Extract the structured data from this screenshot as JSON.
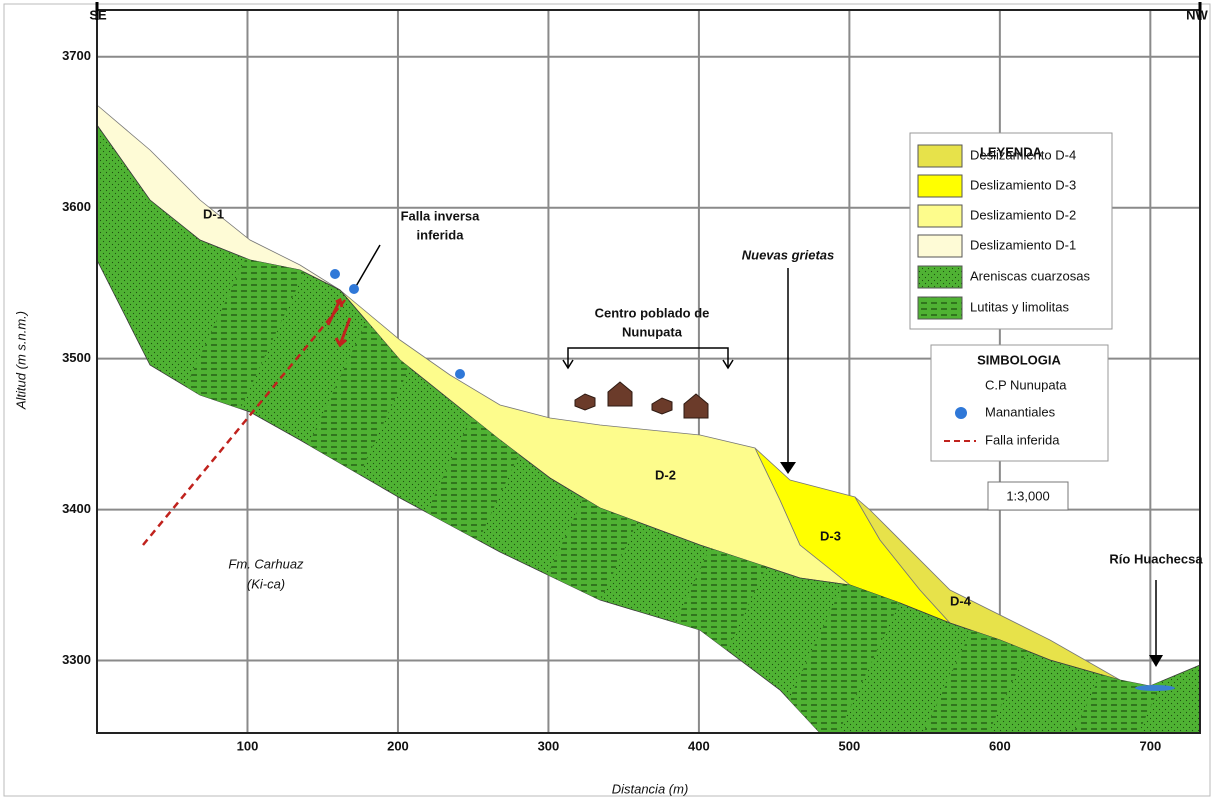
{
  "header": {
    "left": "SE",
    "right": "NW"
  },
  "axes": {
    "x_label": "Distancia (m)",
    "y_label": "Altitud (m s.n.m.)",
    "xlim": [
      0,
      733
    ],
    "ylim": [
      3252,
      3731
    ],
    "xticks": [
      100,
      200,
      300,
      400,
      500,
      600,
      700
    ],
    "yticks": [
      3300,
      3400,
      3500,
      3600,
      3700
    ]
  },
  "units": {
    "d1": "D-1",
    "d2": "D-2",
    "d3": "D-3",
    "d4": "D-4",
    "formation": [
      "Fm. Carhuaz",
      "(Ki-ca)"
    ]
  },
  "annotations": {
    "fault": [
      "Falla inversa",
      "inferida"
    ],
    "cracks": "Nuevas grietas",
    "village": [
      "Centro poblado de",
      "Nunupata"
    ],
    "river": "Río Huachecsa"
  },
  "legend": {
    "title": "LEYENDA",
    "items": [
      "Deslizamiento D-4",
      "Deslizamiento D-3",
      "Deslizamiento D-2",
      "Deslizamiento D-1",
      "Areniscas cuarzosas",
      "Lutitas y limolitas"
    ]
  },
  "symbology": {
    "title": "SIMBOLOGIA",
    "items": [
      "C.P Nunupata",
      "Manantiales",
      "Falla inferida"
    ]
  },
  "scale": "1:3,000"
}
